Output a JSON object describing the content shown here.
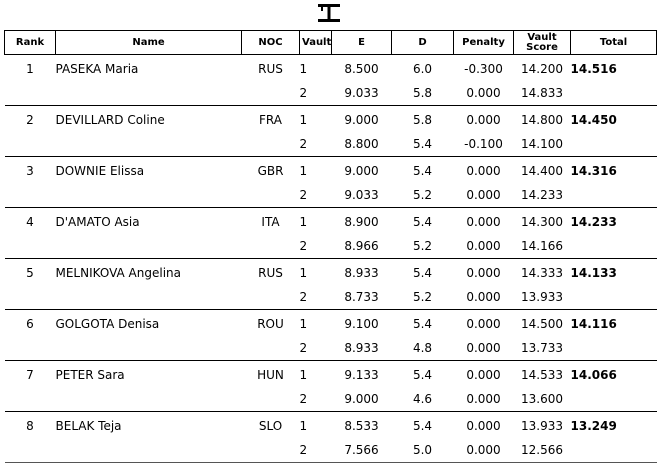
{
  "header": {
    "rank": "Rank",
    "name": "Name",
    "noc": "NOC",
    "vault": "Vault",
    "e": "E",
    "d": "D",
    "penalty": "Penalty",
    "vault_score_line1": "Vault",
    "vault_score_line2": "Score",
    "total": "Total"
  },
  "athletes": [
    {
      "rank": "1",
      "name": "PASEKA Maria",
      "noc": "RUS",
      "total": "14.516",
      "vaults": [
        {
          "vault": "1",
          "e": "8.500",
          "d": "6.0",
          "penalty": "-0.300",
          "score": "14.200"
        },
        {
          "vault": "2",
          "e": "9.033",
          "d": "5.8",
          "penalty": "0.000",
          "score": "14.833"
        }
      ]
    },
    {
      "rank": "2",
      "name": "DEVILLARD Coline",
      "noc": "FRA",
      "total": "14.450",
      "vaults": [
        {
          "vault": "1",
          "e": "9.000",
          "d": "5.8",
          "penalty": "0.000",
          "score": "14.800"
        },
        {
          "vault": "2",
          "e": "8.800",
          "d": "5.4",
          "penalty": "-0.100",
          "score": "14.100"
        }
      ]
    },
    {
      "rank": "3",
      "name": "DOWNIE Elissa",
      "noc": "GBR",
      "total": "14.316",
      "vaults": [
        {
          "vault": "1",
          "e": "9.000",
          "d": "5.4",
          "penalty": "0.000",
          "score": "14.400"
        },
        {
          "vault": "2",
          "e": "9.033",
          "d": "5.2",
          "penalty": "0.000",
          "score": "14.233"
        }
      ]
    },
    {
      "rank": "4",
      "name": "D'AMATO Asia",
      "noc": "ITA",
      "total": "14.233",
      "vaults": [
        {
          "vault": "1",
          "e": "8.900",
          "d": "5.4",
          "penalty": "0.000",
          "score": "14.300"
        },
        {
          "vault": "2",
          "e": "8.966",
          "d": "5.2",
          "penalty": "0.000",
          "score": "14.166"
        }
      ]
    },
    {
      "rank": "5",
      "name": "MELNIKOVA Angelina",
      "noc": "RUS",
      "total": "14.133",
      "vaults": [
        {
          "vault": "1",
          "e": "8.933",
          "d": "5.4",
          "penalty": "0.000",
          "score": "14.333"
        },
        {
          "vault": "2",
          "e": "8.733",
          "d": "5.2",
          "penalty": "0.000",
          "score": "13.933"
        }
      ]
    },
    {
      "rank": "6",
      "name": "GOLGOTA Denisa",
      "noc": "ROU",
      "total": "14.116",
      "vaults": [
        {
          "vault": "1",
          "e": "9.100",
          "d": "5.4",
          "penalty": "0.000",
          "score": "14.500"
        },
        {
          "vault": "2",
          "e": "8.933",
          "d": "4.8",
          "penalty": "0.000",
          "score": "13.733"
        }
      ]
    },
    {
      "rank": "7",
      "name": "PETER Sara",
      "noc": "HUN",
      "total": "14.066",
      "vaults": [
        {
          "vault": "1",
          "e": "9.133",
          "d": "5.4",
          "penalty": "0.000",
          "score": "14.533"
        },
        {
          "vault": "2",
          "e": "9.000",
          "d": "4.6",
          "penalty": "0.000",
          "score": "13.600"
        }
      ]
    },
    {
      "rank": "8",
      "name": "BELAK Teja",
      "noc": "SLO",
      "total": "13.249",
      "vaults": [
        {
          "vault": "1",
          "e": "8.533",
          "d": "5.4",
          "penalty": "0.000",
          "score": "13.933"
        },
        {
          "vault": "2",
          "e": "7.566",
          "d": "5.0",
          "penalty": "0.000",
          "score": "12.566"
        }
      ]
    }
  ],
  "icons": {
    "logo": "vault-apparatus-icon"
  }
}
